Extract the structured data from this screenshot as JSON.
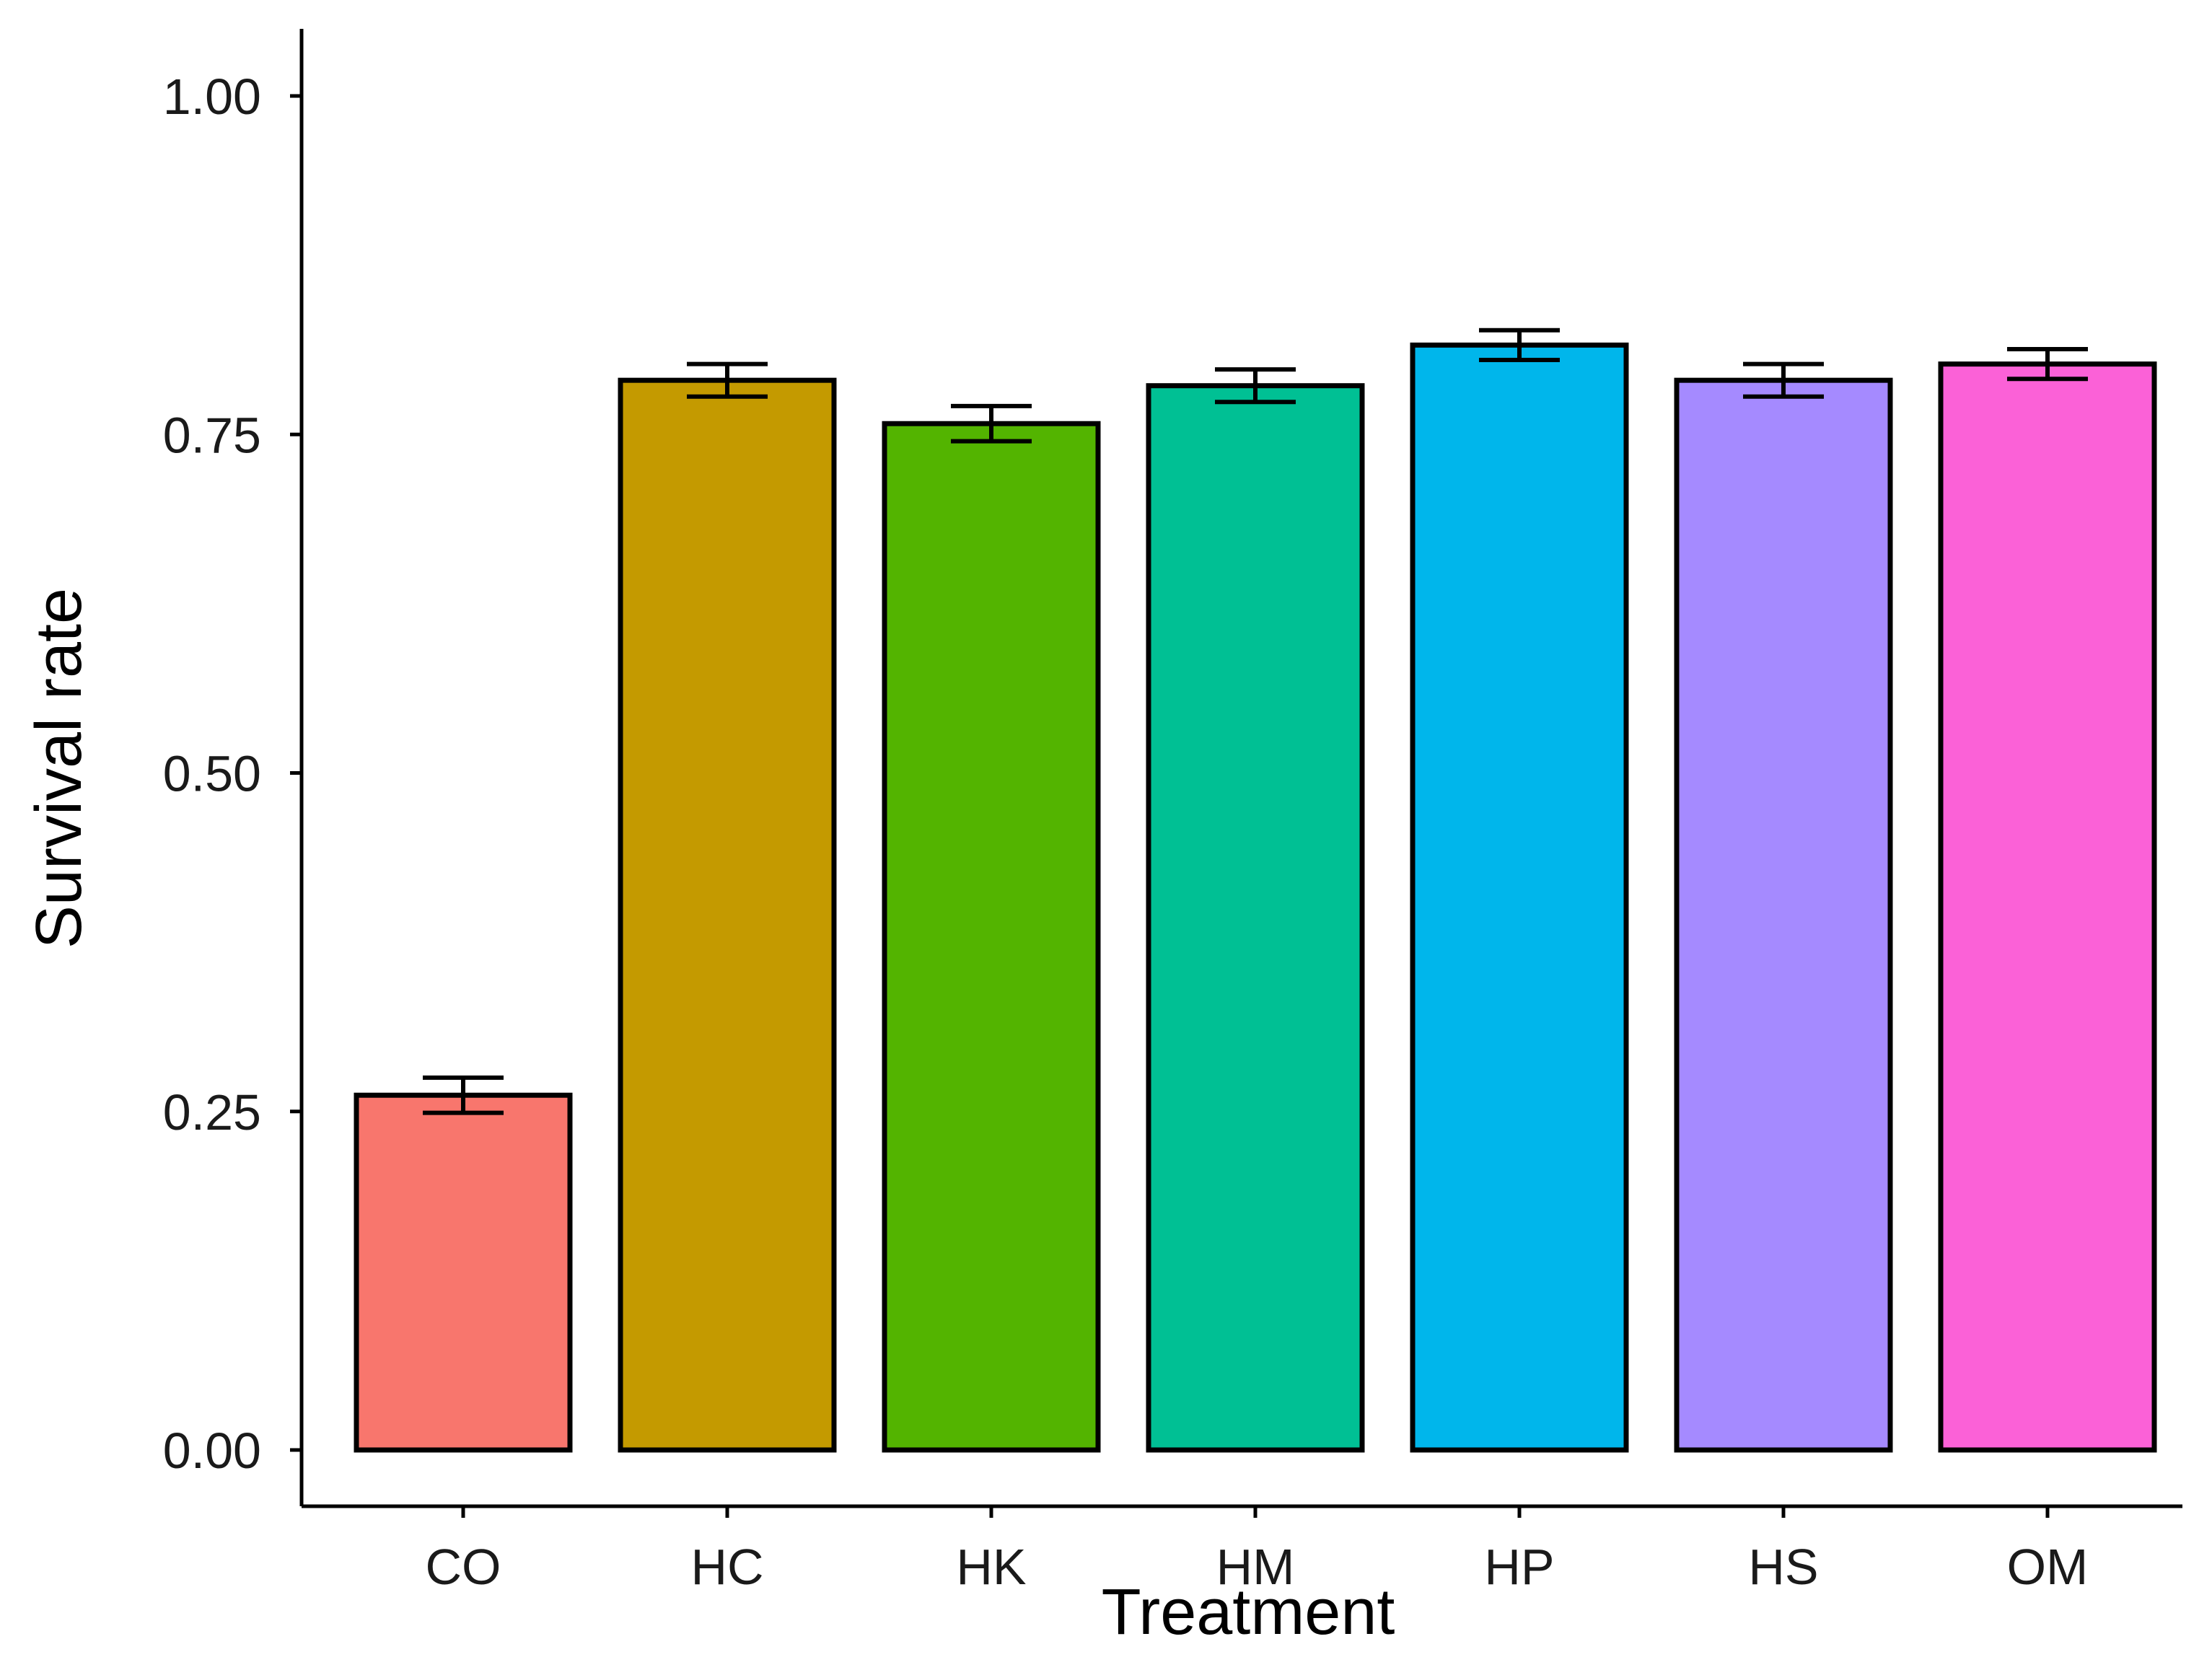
{
  "chart_data": {
    "type": "bar",
    "title": "",
    "xlabel": "Treatment",
    "ylabel": "Survival rate",
    "ylim": [
      -0.05,
      1.05
    ],
    "yticks": [
      0.0,
      0.25,
      0.5,
      0.75,
      1.0
    ],
    "ytick_labels": [
      "0.00",
      "0.25",
      "0.50",
      "0.75",
      "1.00"
    ],
    "categories": [
      "CO",
      "HC",
      "HK",
      "HM",
      "HP",
      "HS",
      "OM"
    ],
    "values": [
      0.262,
      0.79,
      0.758,
      0.786,
      0.816,
      0.79,
      0.802
    ],
    "error": [
      0.013,
      0.012,
      0.013,
      0.012,
      0.011,
      0.012,
      0.011
    ],
    "colors": [
      "#F8766D",
      "#C49A00",
      "#53B400",
      "#00C094",
      "#00B6EB",
      "#A58AFF",
      "#FB61D7"
    ],
    "grid": false,
    "legend": "none"
  }
}
